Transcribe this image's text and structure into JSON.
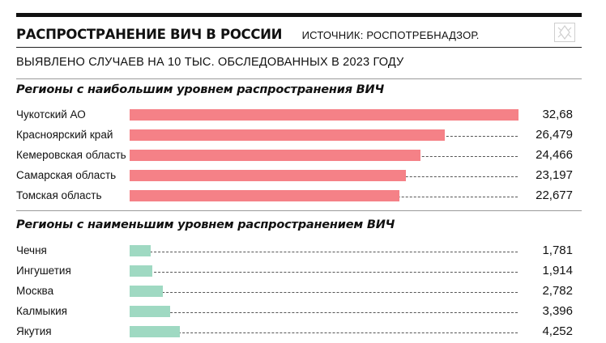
{
  "header": {
    "title": "РАСПРОСТРАНЕНИЕ ВИЧ В РОССИИ",
    "source": "ИСТОЧНИК: РОСПОТРЕБНАДЗОР."
  },
  "colors": {
    "high_bar": "#f58187",
    "low_bar": "#9fd9c2"
  },
  "chart_data": [
    {
      "type": "bar",
      "orientation": "horizontal",
      "title": "Регионы с наибольшим уровнем распространения ВИЧ",
      "subtitle": "ВЫЯВЛЕНО СЛУЧАЕВ НА 10 ТЫС. ОБСЛЕДОВАННЫХ В 2023 ГОДУ",
      "categories": [
        "Чукотский АО",
        "Красноярский край",
        "Кемеровская область",
        "Самарская область",
        "Томская область"
      ],
      "values": [
        32.68,
        26.479,
        24.466,
        23.197,
        22.677
      ],
      "value_labels": [
        "32,68",
        "26,479",
        "24,466",
        "23,197",
        "22,677"
      ],
      "xlim": [
        0,
        32.68
      ]
    },
    {
      "type": "bar",
      "orientation": "horizontal",
      "title": "Регионы с наименьшим уровнем распространением ВИЧ",
      "categories": [
        "Чечня",
        "Ингушетия",
        "Москва",
        "Калмыкия",
        "Якутия"
      ],
      "values": [
        1.781,
        1.914,
        2.782,
        3.396,
        4.252
      ],
      "value_labels": [
        "1,781",
        "1,914",
        "2,782",
        "3,396",
        "4,252"
      ],
      "xlim": [
        0,
        32.68
      ]
    }
  ]
}
